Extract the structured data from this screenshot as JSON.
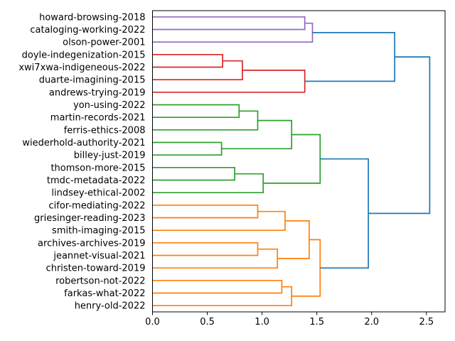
{
  "figure": {
    "background": "#ffffff",
    "frame_color": "#000000"
  },
  "chart_data": {
    "type": "dendrogram",
    "orientation": "right",
    "title": "",
    "xlabel": "",
    "ylabel": "",
    "xlim": [
      0,
      2.67
    ],
    "grid": false,
    "x_ticks": [
      0.0,
      0.5,
      1.0,
      1.5,
      2.0,
      2.5
    ],
    "x_tick_labels": [
      "0.0",
      "0.5",
      "1.0",
      "1.5",
      "2.0",
      "2.5"
    ],
    "link_colors": {
      "blue": "#1f77b4",
      "orange": "#ff7f0e",
      "green": "#2ca02c",
      "red": "#d62728",
      "purple": "#9467bd"
    },
    "leaves": [
      {
        "label": "howard-browsing-2018",
        "cluster": "purple"
      },
      {
        "label": "cataloging-working-2022",
        "cluster": "purple"
      },
      {
        "label": "olson-power-2001",
        "cluster": "purple"
      },
      {
        "label": "doyle-indegenization-2015",
        "cluster": "red"
      },
      {
        "label": "xwi7xwa-indigeneous-2022",
        "cluster": "red"
      },
      {
        "label": "duarte-imagining-2015",
        "cluster": "red"
      },
      {
        "label": "andrews-trying-2019",
        "cluster": "red"
      },
      {
        "label": "yon-using-2022",
        "cluster": "green"
      },
      {
        "label": "martin-records-2021",
        "cluster": "green"
      },
      {
        "label": "ferris-ethics-2008",
        "cluster": "green"
      },
      {
        "label": "wiederhold-authority-2021",
        "cluster": "green"
      },
      {
        "label": "billey-just-2019",
        "cluster": "green"
      },
      {
        "label": "thomson-more-2015",
        "cluster": "green"
      },
      {
        "label": "tmdc-metadata-2022",
        "cluster": "green"
      },
      {
        "label": "lindsey-ethical-2002",
        "cluster": "green"
      },
      {
        "label": "cifor-mediating-2022",
        "cluster": "orange"
      },
      {
        "label": "griesinger-reading-2023",
        "cluster": "orange"
      },
      {
        "label": "smith-imaging-2015",
        "cluster": "orange"
      },
      {
        "label": "archives-archives-2019",
        "cluster": "orange"
      },
      {
        "label": "jeannet-visual-2021",
        "cluster": "orange"
      },
      {
        "label": "christen-toward-2019",
        "cluster": "orange"
      },
      {
        "label": "robertson-not-2022",
        "cluster": "orange"
      },
      {
        "label": "farkas-what-2022",
        "cluster": "orange"
      },
      {
        "label": "henry-old-2022",
        "cluster": "orange"
      }
    ],
    "merges": [
      {
        "id": "m0",
        "a": 0,
        "b": 1,
        "dist": 1.39,
        "color": "purple"
      },
      {
        "id": "m1",
        "a": "m0",
        "b": 2,
        "dist": 1.46,
        "color": "purple"
      },
      {
        "id": "m2",
        "a": 3,
        "b": 4,
        "dist": 0.64,
        "color": "red"
      },
      {
        "id": "m3",
        "a": "m2",
        "b": 5,
        "dist": 0.82,
        "color": "red"
      },
      {
        "id": "m4",
        "a": "m3",
        "b": 6,
        "dist": 1.39,
        "color": "red"
      },
      {
        "id": "m5",
        "a": 7,
        "b": 8,
        "dist": 0.79,
        "color": "green"
      },
      {
        "id": "m6",
        "a": "m5",
        "b": 9,
        "dist": 0.96,
        "color": "green"
      },
      {
        "id": "m7",
        "a": 10,
        "b": 11,
        "dist": 0.63,
        "color": "green"
      },
      {
        "id": "m8",
        "a": "m6",
        "b": "m7",
        "dist": 1.27,
        "color": "green"
      },
      {
        "id": "m9",
        "a": 12,
        "b": 13,
        "dist": 0.75,
        "color": "green"
      },
      {
        "id": "m10",
        "a": "m9",
        "b": 14,
        "dist": 1.01,
        "color": "green"
      },
      {
        "id": "m11",
        "a": "m8",
        "b": "m10",
        "dist": 1.53,
        "color": "green"
      },
      {
        "id": "m12",
        "a": 15,
        "b": 16,
        "dist": 0.96,
        "color": "orange"
      },
      {
        "id": "m13",
        "a": "m12",
        "b": 17,
        "dist": 1.21,
        "color": "orange"
      },
      {
        "id": "m14",
        "a": 18,
        "b": 19,
        "dist": 0.96,
        "color": "orange"
      },
      {
        "id": "m15",
        "a": "m14",
        "b": 20,
        "dist": 1.14,
        "color": "orange"
      },
      {
        "id": "m16",
        "a": "m13",
        "b": "m15",
        "dist": 1.43,
        "color": "orange"
      },
      {
        "id": "m17",
        "a": 21,
        "b": 22,
        "dist": 1.18,
        "color": "orange"
      },
      {
        "id": "m18",
        "a": "m17",
        "b": 23,
        "dist": 1.27,
        "color": "orange"
      },
      {
        "id": "m19",
        "a": "m16",
        "b": "m18",
        "dist": 1.53,
        "color": "orange"
      },
      {
        "id": "m20",
        "a": "m1",
        "b": "m4",
        "dist": 2.21,
        "color": "blue"
      },
      {
        "id": "m21",
        "a": "m11",
        "b": "m19",
        "dist": 1.97,
        "color": "blue"
      },
      {
        "id": "m22",
        "a": "m20",
        "b": "m21",
        "dist": 2.53,
        "color": "blue"
      }
    ]
  }
}
